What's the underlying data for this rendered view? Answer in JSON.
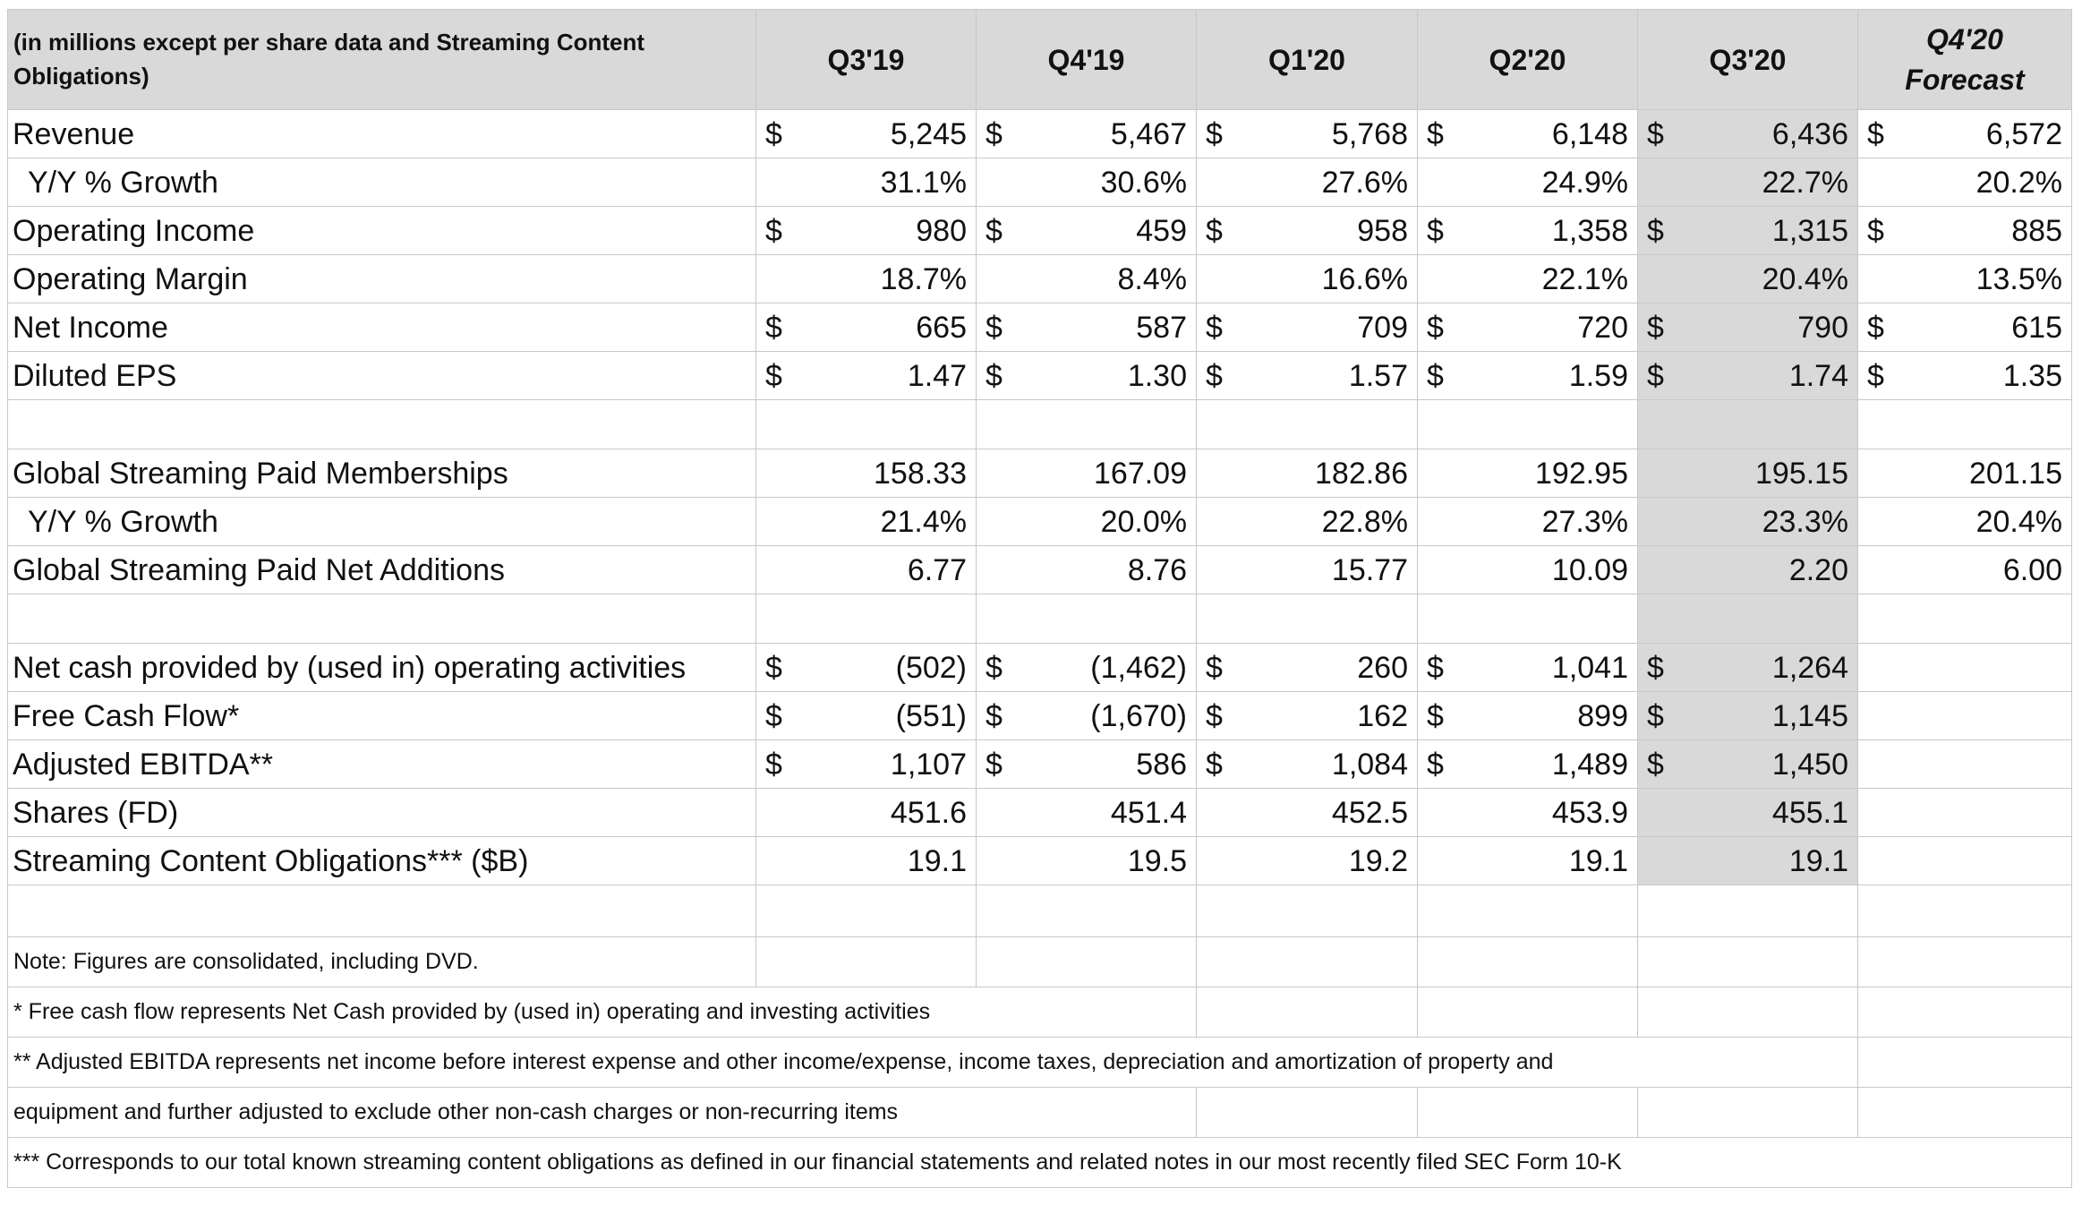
{
  "header": {
    "note": "(in millions except per share data and Streaming Content Obligations)",
    "quarters": [
      "Q3'19",
      "Q4'19",
      "Q1'20",
      "Q2'20",
      "Q3'20"
    ],
    "forecast_line1": "Q4'20",
    "forecast_line2": "Forecast"
  },
  "rows": [
    {
      "label": "Revenue",
      "cells": [
        [
          "$",
          "5,245"
        ],
        [
          "$",
          "5,467"
        ],
        [
          "$",
          "5,768"
        ],
        [
          "$",
          "6,148"
        ],
        [
          "$",
          "6,436"
        ],
        [
          "$",
          "6,572"
        ]
      ]
    },
    {
      "label": "Y/Y % Growth",
      "cells": [
        [
          "",
          "31.1%"
        ],
        [
          "",
          "30.6%"
        ],
        [
          "",
          "27.6%"
        ],
        [
          "",
          "24.9%"
        ],
        [
          "",
          "22.7%"
        ],
        [
          "",
          "20.2%"
        ]
      ]
    },
    {
      "label": "Operating Income",
      "cells": [
        [
          "$",
          "980"
        ],
        [
          "$",
          "459"
        ],
        [
          "$",
          "958"
        ],
        [
          "$",
          "1,358"
        ],
        [
          "$",
          "1,315"
        ],
        [
          "$",
          "885"
        ]
      ]
    },
    {
      "label": "Operating Margin",
      "cells": [
        [
          "",
          "18.7%"
        ],
        [
          "",
          "8.4%"
        ],
        [
          "",
          "16.6%"
        ],
        [
          "",
          "22.1%"
        ],
        [
          "",
          "20.4%"
        ],
        [
          "",
          "13.5%"
        ]
      ]
    },
    {
      "label": "Net Income",
      "cells": [
        [
          "$",
          "665"
        ],
        [
          "$",
          "587"
        ],
        [
          "$",
          "709"
        ],
        [
          "$",
          "720"
        ],
        [
          "$",
          "790"
        ],
        [
          "$",
          "615"
        ]
      ]
    },
    {
      "label": "Diluted EPS",
      "cells": [
        [
          "$",
          "1.47"
        ],
        [
          "$",
          "1.30"
        ],
        [
          "$",
          "1.57"
        ],
        [
          "$",
          "1.59"
        ],
        [
          "$",
          "1.74"
        ],
        [
          "$",
          "1.35"
        ]
      ]
    },
    {
      "label": "Global Streaming Paid Memberships",
      "cells": [
        [
          "",
          "158.33"
        ],
        [
          "",
          "167.09"
        ],
        [
          "",
          "182.86"
        ],
        [
          "",
          "192.95"
        ],
        [
          "",
          "195.15"
        ],
        [
          "",
          "201.15"
        ]
      ]
    },
    {
      "label": "Y/Y % Growth",
      "cells": [
        [
          "",
          "21.4%"
        ],
        [
          "",
          "20.0%"
        ],
        [
          "",
          "22.8%"
        ],
        [
          "",
          "27.3%"
        ],
        [
          "",
          "23.3%"
        ],
        [
          "",
          "20.4%"
        ]
      ]
    },
    {
      "label": "Global Streaming Paid Net Additions",
      "cells": [
        [
          "",
          "6.77"
        ],
        [
          "",
          "8.76"
        ],
        [
          "",
          "15.77"
        ],
        [
          "",
          "10.09"
        ],
        [
          "",
          "2.20"
        ],
        [
          "",
          "6.00"
        ]
      ]
    },
    {
      "label": "Net cash provided by (used in) operating activities",
      "cells": [
        [
          "$",
          "(502)"
        ],
        [
          "$",
          "(1,462)"
        ],
        [
          "$",
          "260"
        ],
        [
          "$",
          "1,041"
        ],
        [
          "$",
          "1,264"
        ],
        [
          "",
          ""
        ]
      ]
    },
    {
      "label": "Free Cash Flow*",
      "cells": [
        [
          "$",
          "(551)"
        ],
        [
          "$",
          "(1,670)"
        ],
        [
          "$",
          "162"
        ],
        [
          "$",
          "899"
        ],
        [
          "$",
          "1,145"
        ],
        [
          "",
          ""
        ]
      ]
    },
    {
      "label": "Adjusted EBITDA**",
      "cells": [
        [
          "$",
          "1,107"
        ],
        [
          "$",
          "586"
        ],
        [
          "$",
          "1,084"
        ],
        [
          "$",
          "1,489"
        ],
        [
          "$",
          "1,450"
        ],
        [
          "",
          ""
        ]
      ]
    },
    {
      "label": "Shares (FD)",
      "cells": [
        [
          "",
          "451.6"
        ],
        [
          "",
          "451.4"
        ],
        [
          "",
          "452.5"
        ],
        [
          "",
          "453.9"
        ],
        [
          "",
          "455.1"
        ],
        [
          "",
          ""
        ]
      ]
    },
    {
      "label": "Streaming Content Obligations*** ($B)",
      "cells": [
        [
          "",
          "19.1"
        ],
        [
          "",
          "19.5"
        ],
        [
          "",
          "19.2"
        ],
        [
          "",
          "19.1"
        ],
        [
          "",
          "19.1"
        ],
        [
          "",
          ""
        ]
      ]
    }
  ],
  "notes": {
    "n1": "Note: Figures are consolidated, including DVD.",
    "n2": "* Free cash flow represents Net Cash provided by (used in) operating and investing activities",
    "n3a": "** Adjusted EBITDA represents net income before interest expense and other income/expense, income taxes, depreciation and amortization of property and",
    "n3b": "equipment and further adjusted to exclude other non-cash charges or non-recurring items",
    "n4": "*** Corresponds to our total known streaming content obligations as defined in our financial statements and related notes in our most recently filed SEC Form 10-K"
  },
  "colors": {
    "header_bg": "#d9d9d9",
    "highlight_col": "#d9d9d9",
    "grid": "#c8c8c8"
  }
}
